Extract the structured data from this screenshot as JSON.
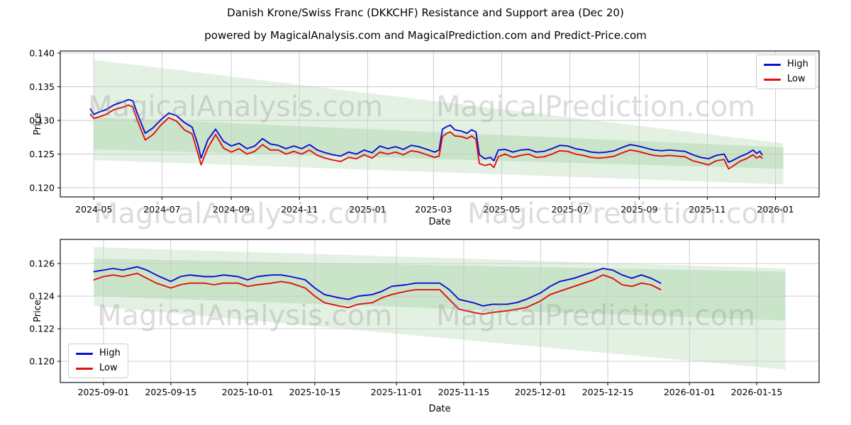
{
  "title": "Danish Krone/Swiss Franc (DKKCHF) Resistance and Support area (Dec 20)",
  "subtitle": "powered by MagicalAnalysis.com and MagicalPrediction.com and Predict-Price.com",
  "watermarks": {
    "analysis": "MagicalAnalysis.com",
    "prediction": "MagicalPrediction.com"
  },
  "legend": {
    "high": "High",
    "low": "Low"
  },
  "colors": {
    "high_line": "#0d0dd0",
    "low_line": "#e01111",
    "band_fill": "#008000",
    "band_opacity": 0.11,
    "grid": "#c9c9c9",
    "spine": "#000000",
    "tick_text": "#000000"
  },
  "chart_data": [
    {
      "id": "top",
      "type": "line",
      "xlabel": "Date",
      "ylabel": "Price",
      "legend_position": "upper right",
      "grid": true,
      "x_range": [
        "2024-04-01",
        "2026-02-09"
      ],
      "y_range": [
        0.11863,
        0.14032
      ],
      "x_ticks": [
        {
          "date": "2024-05-01",
          "label": "2024-05"
        },
        {
          "date": "2024-07-01",
          "label": "2024-07"
        },
        {
          "date": "2024-09-01",
          "label": "2024-09"
        },
        {
          "date": "2024-11-01",
          "label": "2024-11"
        },
        {
          "date": "2025-01-01",
          "label": "2025-01"
        },
        {
          "date": "2025-03-01",
          "label": "2025-03"
        },
        {
          "date": "2025-05-01",
          "label": "2025-05"
        },
        {
          "date": "2025-07-01",
          "label": "2025-07"
        },
        {
          "date": "2025-09-01",
          "label": "2025-09"
        },
        {
          "date": "2025-11-01",
          "label": "2025-11"
        },
        {
          "date": "2026-01-01",
          "label": "2026-01"
        }
      ],
      "y_ticks": [
        {
          "value": 0.12,
          "label": "0.120"
        },
        {
          "value": 0.125,
          "label": "0.125"
        },
        {
          "value": 0.13,
          "label": "0.130"
        },
        {
          "value": 0.135,
          "label": "0.135"
        },
        {
          "value": 0.14,
          "label": "0.140"
        }
      ],
      "bands": [
        {
          "name": "resistance-area",
          "start_date": "2024-05-01",
          "end_date": "2026-01-08",
          "top": [
            0.139,
            0.1266
          ],
          "bottom": [
            0.1257,
            0.1228
          ]
        },
        {
          "name": "support-area",
          "start_date": "2024-05-01",
          "end_date": "2026-01-08",
          "top": [
            0.1305,
            0.126
          ],
          "bottom": [
            0.1241,
            0.1205
          ]
        }
      ],
      "dates": [
        "2024-04-28",
        "2024-05-01",
        "2024-05-05",
        "2024-05-12",
        "2024-05-19",
        "2024-05-26",
        "2024-06-01",
        "2024-06-05",
        "2024-06-09",
        "2024-06-16",
        "2024-06-23",
        "2024-06-30",
        "2024-07-07",
        "2024-07-14",
        "2024-07-21",
        "2024-07-28",
        "2024-08-02",
        "2024-08-05",
        "2024-08-11",
        "2024-08-18",
        "2024-08-25",
        "2024-09-01",
        "2024-09-08",
        "2024-09-15",
        "2024-09-22",
        "2024-09-29",
        "2024-10-06",
        "2024-10-13",
        "2024-10-20",
        "2024-10-27",
        "2024-11-03",
        "2024-11-10",
        "2024-11-17",
        "2024-11-24",
        "2024-12-01",
        "2024-12-08",
        "2024-12-15",
        "2024-12-22",
        "2024-12-29",
        "2025-01-05",
        "2025-01-12",
        "2025-01-19",
        "2025-01-26",
        "2025-02-02",
        "2025-02-09",
        "2025-02-16",
        "2025-02-23",
        "2025-03-02",
        "2025-03-06",
        "2025-03-09",
        "2025-03-13",
        "2025-03-16",
        "2025-03-20",
        "2025-03-26",
        "2025-03-31",
        "2025-04-04",
        "2025-04-08",
        "2025-04-11",
        "2025-04-16",
        "2025-04-21",
        "2025-04-24",
        "2025-04-28",
        "2025-05-04",
        "2025-05-11",
        "2025-05-18",
        "2025-05-25",
        "2025-06-01",
        "2025-06-08",
        "2025-06-15",
        "2025-06-22",
        "2025-06-29",
        "2025-07-06",
        "2025-07-13",
        "2025-07-20",
        "2025-07-27",
        "2025-08-03",
        "2025-08-10",
        "2025-08-17",
        "2025-08-24",
        "2025-08-31",
        "2025-09-07",
        "2025-09-14",
        "2025-09-21",
        "2025-09-28",
        "2025-10-05",
        "2025-10-12",
        "2025-10-19",
        "2025-10-26",
        "2025-11-02",
        "2025-11-09",
        "2025-11-16",
        "2025-11-20",
        "2025-11-23",
        "2025-11-30",
        "2025-12-07",
        "2025-12-12",
        "2025-12-15",
        "2025-12-18",
        "2025-12-20"
      ],
      "series": [
        {
          "name": "High",
          "color_key": "high_line",
          "values": [
            0.1317,
            0.1309,
            0.1312,
            0.1316,
            0.1323,
            0.1327,
            0.1331,
            0.1329,
            0.131,
            0.1281,
            0.1289,
            0.1301,
            0.1311,
            0.1307,
            0.1297,
            0.129,
            0.1265,
            0.1244,
            0.1271,
            0.1287,
            0.1269,
            0.1262,
            0.1266,
            0.1258,
            0.1262,
            0.1273,
            0.1265,
            0.1263,
            0.1258,
            0.1262,
            0.1258,
            0.1264,
            0.1256,
            0.1252,
            0.1249,
            0.1247,
            0.1253,
            0.125,
            0.1256,
            0.1252,
            0.1262,
            0.1258,
            0.1261,
            0.1257,
            0.1263,
            0.1261,
            0.1257,
            0.1253,
            0.1256,
            0.1287,
            0.1291,
            0.1293,
            0.1286,
            0.1284,
            0.1281,
            0.1286,
            0.1283,
            0.1249,
            0.1243,
            0.1245,
            0.124,
            0.1256,
            0.1257,
            0.1253,
            0.1256,
            0.1257,
            0.1253,
            0.1254,
            0.1258,
            0.1263,
            0.1262,
            0.1258,
            0.1256,
            0.1253,
            0.1252,
            0.1253,
            0.1255,
            0.126,
            0.1264,
            0.1262,
            0.1259,
            0.1256,
            0.1255,
            0.1256,
            0.1255,
            0.1254,
            0.1249,
            0.1245,
            0.1243,
            0.1248,
            0.125,
            0.1238,
            0.124,
            0.1246,
            0.1251,
            0.1256,
            0.1251,
            0.1254,
            0.1249
          ]
        },
        {
          "name": "Low",
          "color_key": "low_line",
          "values": [
            0.1309,
            0.1303,
            0.1305,
            0.1309,
            0.1316,
            0.1319,
            0.1323,
            0.132,
            0.13,
            0.1271,
            0.1279,
            0.1293,
            0.1304,
            0.1299,
            0.1286,
            0.128,
            0.1252,
            0.1234,
            0.1259,
            0.1279,
            0.1259,
            0.1253,
            0.1258,
            0.125,
            0.1254,
            0.1264,
            0.1256,
            0.1256,
            0.125,
            0.1254,
            0.125,
            0.1256,
            0.1248,
            0.1244,
            0.1241,
            0.1239,
            0.1245,
            0.1243,
            0.1249,
            0.1244,
            0.1253,
            0.125,
            0.1253,
            0.1249,
            0.1255,
            0.1253,
            0.1249,
            0.1245,
            0.1247,
            0.1276,
            0.1281,
            0.1283,
            0.1277,
            0.1276,
            0.1273,
            0.1277,
            0.1272,
            0.1236,
            0.1233,
            0.1235,
            0.123,
            0.1246,
            0.125,
            0.1245,
            0.1248,
            0.125,
            0.1245,
            0.1246,
            0.125,
            0.1255,
            0.1254,
            0.125,
            0.1248,
            0.1245,
            0.1244,
            0.1245,
            0.1247,
            0.1252,
            0.1256,
            0.1254,
            0.1251,
            0.1248,
            0.1247,
            0.1248,
            0.1247,
            0.1246,
            0.124,
            0.1237,
            0.1234,
            0.124,
            0.1242,
            0.1228,
            0.1231,
            0.1239,
            0.1244,
            0.1249,
            0.1244,
            0.1247,
            0.1244
          ]
        }
      ]
    },
    {
      "id": "bottom",
      "type": "line",
      "xlabel": "Date",
      "ylabel": "Price",
      "legend_position": "lower left",
      "grid": true,
      "x_range": [
        "2025-08-23",
        "2026-01-28"
      ],
      "y_range": [
        0.1187,
        0.12748
      ],
      "x_ticks": [
        {
          "date": "2025-09-01",
          "label": "2025-09-01"
        },
        {
          "date": "2025-09-15",
          "label": "2025-09-15"
        },
        {
          "date": "2025-10-01",
          "label": "2025-10-01"
        },
        {
          "date": "2025-10-15",
          "label": "2025-10-15"
        },
        {
          "date": "2025-11-01",
          "label": "2025-11-01"
        },
        {
          "date": "2025-11-15",
          "label": "2025-11-15"
        },
        {
          "date": "2025-12-01",
          "label": "2025-12-01"
        },
        {
          "date": "2025-12-15",
          "label": "2025-12-15"
        },
        {
          "date": "2026-01-01",
          "label": "2026-01-01"
        },
        {
          "date": "2026-01-15",
          "label": "2026-01-15"
        }
      ],
      "y_ticks": [
        {
          "value": 0.12,
          "label": "0.120"
        },
        {
          "value": 0.122,
          "label": "0.122"
        },
        {
          "value": 0.124,
          "label": "0.124"
        },
        {
          "value": 0.126,
          "label": "0.126"
        }
      ],
      "bands": [
        {
          "name": "resistance-area",
          "start_date": "2025-08-30",
          "end_date": "2026-01-21",
          "top": [
            0.127,
            0.1257
          ],
          "bottom": [
            0.124,
            0.1225
          ]
        },
        {
          "name": "support-area",
          "start_date": "2025-08-30",
          "end_date": "2026-01-21",
          "top": [
            0.1263,
            0.1255
          ],
          "bottom": [
            0.1234,
            0.1195
          ]
        }
      ],
      "dates": [
        "2025-08-30",
        "2025-09-01",
        "2025-09-03",
        "2025-09-05",
        "2025-09-08",
        "2025-09-10",
        "2025-09-12",
        "2025-09-15",
        "2025-09-17",
        "2025-09-19",
        "2025-09-22",
        "2025-09-24",
        "2025-09-26",
        "2025-09-29",
        "2025-10-01",
        "2025-10-03",
        "2025-10-06",
        "2025-10-08",
        "2025-10-10",
        "2025-10-13",
        "2025-10-15",
        "2025-10-17",
        "2025-10-20",
        "2025-10-22",
        "2025-10-24",
        "2025-10-27",
        "2025-10-29",
        "2025-10-31",
        "2025-11-03",
        "2025-11-05",
        "2025-11-07",
        "2025-11-10",
        "2025-11-12",
        "2025-11-14",
        "2025-11-17",
        "2025-11-19",
        "2025-11-21",
        "2025-11-24",
        "2025-11-26",
        "2025-11-28",
        "2025-12-01",
        "2025-12-03",
        "2025-12-05",
        "2025-12-08",
        "2025-12-10",
        "2025-12-12",
        "2025-12-14",
        "2025-12-16",
        "2025-12-18",
        "2025-12-20",
        "2025-12-22",
        "2025-12-24",
        "2025-12-26"
      ],
      "series": [
        {
          "name": "High",
          "color_key": "high_line",
          "values": [
            0.1255,
            0.1256,
            0.1257,
            0.1256,
            0.1258,
            0.1256,
            0.1253,
            0.1249,
            0.1252,
            0.1253,
            0.1252,
            0.1252,
            0.1253,
            0.1252,
            0.125,
            0.1252,
            0.1253,
            0.1253,
            0.1252,
            0.125,
            0.1245,
            0.1241,
            0.1239,
            0.1238,
            0.124,
            0.1241,
            0.1243,
            0.1246,
            0.1247,
            0.1248,
            0.1248,
            0.1248,
            0.1244,
            0.1238,
            0.1236,
            0.1234,
            0.1235,
            0.1235,
            0.1236,
            0.1238,
            0.1242,
            0.1246,
            0.1249,
            0.1251,
            0.1253,
            0.1255,
            0.1257,
            0.1256,
            0.1253,
            0.1251,
            0.1253,
            0.1251,
            0.1248
          ]
        },
        {
          "name": "Low",
          "color_key": "low_line",
          "values": [
            0.125,
            0.1252,
            0.1253,
            0.1252,
            0.1254,
            0.1251,
            0.1248,
            0.1245,
            0.1247,
            0.1248,
            0.1248,
            0.1247,
            0.1248,
            0.1248,
            0.1246,
            0.1247,
            0.1248,
            0.1249,
            0.1248,
            0.1245,
            0.124,
            0.1236,
            0.1234,
            0.1233,
            0.1235,
            0.1236,
            0.1239,
            0.1241,
            0.1243,
            0.1244,
            0.1244,
            0.1244,
            0.1238,
            0.1232,
            0.123,
            0.1229,
            0.123,
            0.1231,
            0.1232,
            0.1233,
            0.1237,
            0.1241,
            0.1243,
            0.1246,
            0.1248,
            0.125,
            0.1253,
            0.1251,
            0.1247,
            0.1246,
            0.1248,
            0.1247,
            0.1244
          ]
        }
      ]
    }
  ]
}
